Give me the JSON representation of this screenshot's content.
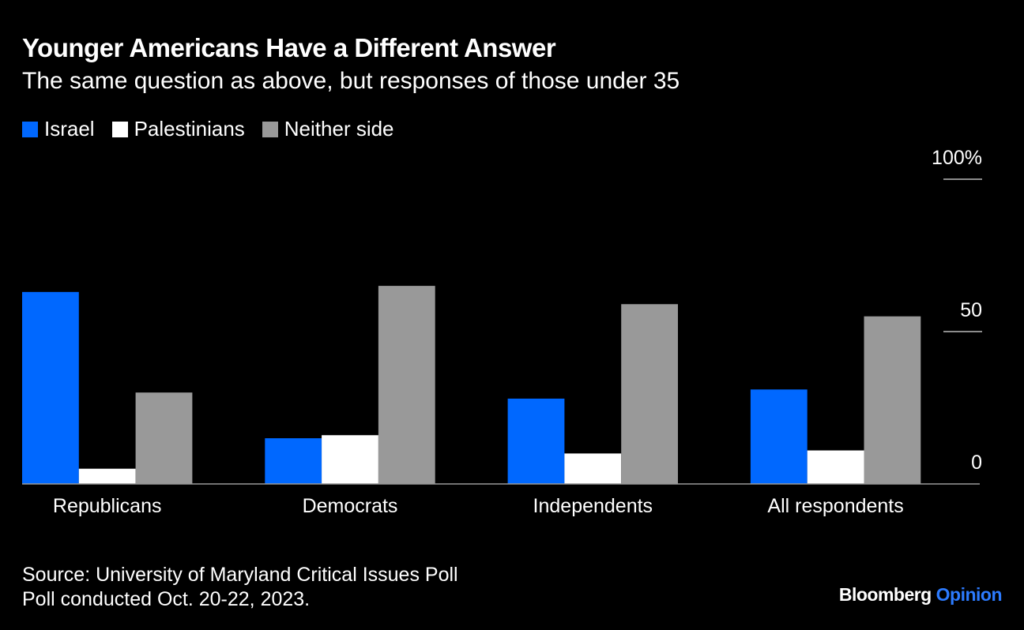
{
  "title": "Younger Americans Have a Different Answer",
  "subtitle": "The same question as above, but responses of those under 35",
  "legend": [
    {
      "label": "Israel",
      "color": "#0068ff"
    },
    {
      "label": "Palestinians",
      "color": "#ffffff"
    },
    {
      "label": "Neither side",
      "color": "#999999"
    }
  ],
  "footer": {
    "source": "Source: University of Maryland Critical Issues Poll",
    "note": "Poll conducted Oct. 20-22, 2023."
  },
  "brand": {
    "name": "Bloomberg",
    "section": "Opinion",
    "section_color": "#2c7bff"
  },
  "chart_data": {
    "type": "bar",
    "title": "Younger Americans Have a Different Answer",
    "subtitle": "The same question as above, but responses of those under 35",
    "categories": [
      "Republicans",
      "Democrats",
      "Independents",
      "All respondents"
    ],
    "series": [
      {
        "name": "Israel",
        "color": "#0068ff",
        "values": [
          63,
          15,
          28,
          31
        ]
      },
      {
        "name": "Palestinians",
        "color": "#ffffff",
        "values": [
          5,
          16,
          10,
          11
        ]
      },
      {
        "name": "Neither side",
        "color": "#999999",
        "values": [
          30,
          65,
          59,
          55
        ]
      }
    ],
    "yticks": [
      {
        "value": 0,
        "label": "0"
      },
      {
        "value": 50,
        "label": "50"
      },
      {
        "value": 100,
        "label": "100%"
      }
    ],
    "ylim": [
      0,
      100
    ],
    "y_axis_position": "right",
    "grid": false,
    "legend_position": "top-left"
  }
}
